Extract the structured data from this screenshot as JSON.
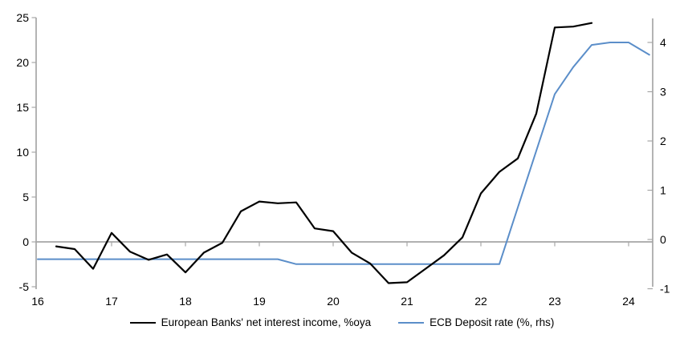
{
  "chart_data": {
    "type": "line",
    "title": "",
    "legend_position": "bottom",
    "grid": "zero-line-only",
    "x_axis": {
      "tick_years": [
        16,
        17,
        18,
        19,
        20,
        21,
        22,
        23,
        24
      ],
      "tick_labels": [
        "16",
        "17",
        "18",
        "19",
        "20",
        "21",
        "22",
        "23",
        "24"
      ],
      "range": [
        16,
        24.33
      ]
    },
    "left_axis": {
      "ticks": [
        -5,
        0,
        5,
        10,
        15,
        20,
        25
      ],
      "range": [
        -5,
        25
      ]
    },
    "right_axis": {
      "ticks": [
        -1,
        0,
        1,
        2,
        3,
        4
      ],
      "range": [
        -1,
        4.5
      ]
    },
    "series": [
      {
        "name": "European Banks' net interest income, %oya",
        "axis": "left",
        "color": "#000000",
        "x": [
          16.25,
          16.5,
          16.75,
          17,
          17.25,
          17.5,
          17.75,
          18,
          18.25,
          18.5,
          18.75,
          19,
          19.25,
          19.5,
          19.75,
          20,
          20.25,
          20.5,
          20.75,
          21,
          21.25,
          21.5,
          21.75,
          22,
          22.25,
          22.5,
          22.75,
          23,
          23.25,
          23.5
        ],
        "values": [
          -0.5,
          -0.8,
          -3,
          1,
          -1.1,
          -2,
          -1.4,
          -3.4,
          -1.2,
          -0.1,
          3.4,
          4.5,
          4.3,
          4.4,
          1.5,
          1.2,
          -1.2,
          -2.4,
          -4.6,
          -4.5,
          -3,
          -1.5,
          0.5,
          5.4,
          7.8,
          9.3,
          14.3,
          23.9,
          24,
          24.4
        ]
      },
      {
        "name": "ECB Deposit rate (%, rhs)",
        "axis": "right",
        "color": "#5B8EC9",
        "x": [
          16,
          19.25,
          19.5,
          22.25,
          22.5,
          22.75,
          23,
          23.25,
          23.5,
          23.75,
          24,
          24.28
        ],
        "values": [
          -0.4,
          -0.4,
          -0.5,
          -0.5,
          0.65,
          1.8,
          2.95,
          3.5,
          3.95,
          4,
          4,
          3.75
        ]
      }
    ]
  },
  "colors": {
    "axis": "#A6A6A6",
    "text": "#000000",
    "background": "#FFFFFF"
  }
}
